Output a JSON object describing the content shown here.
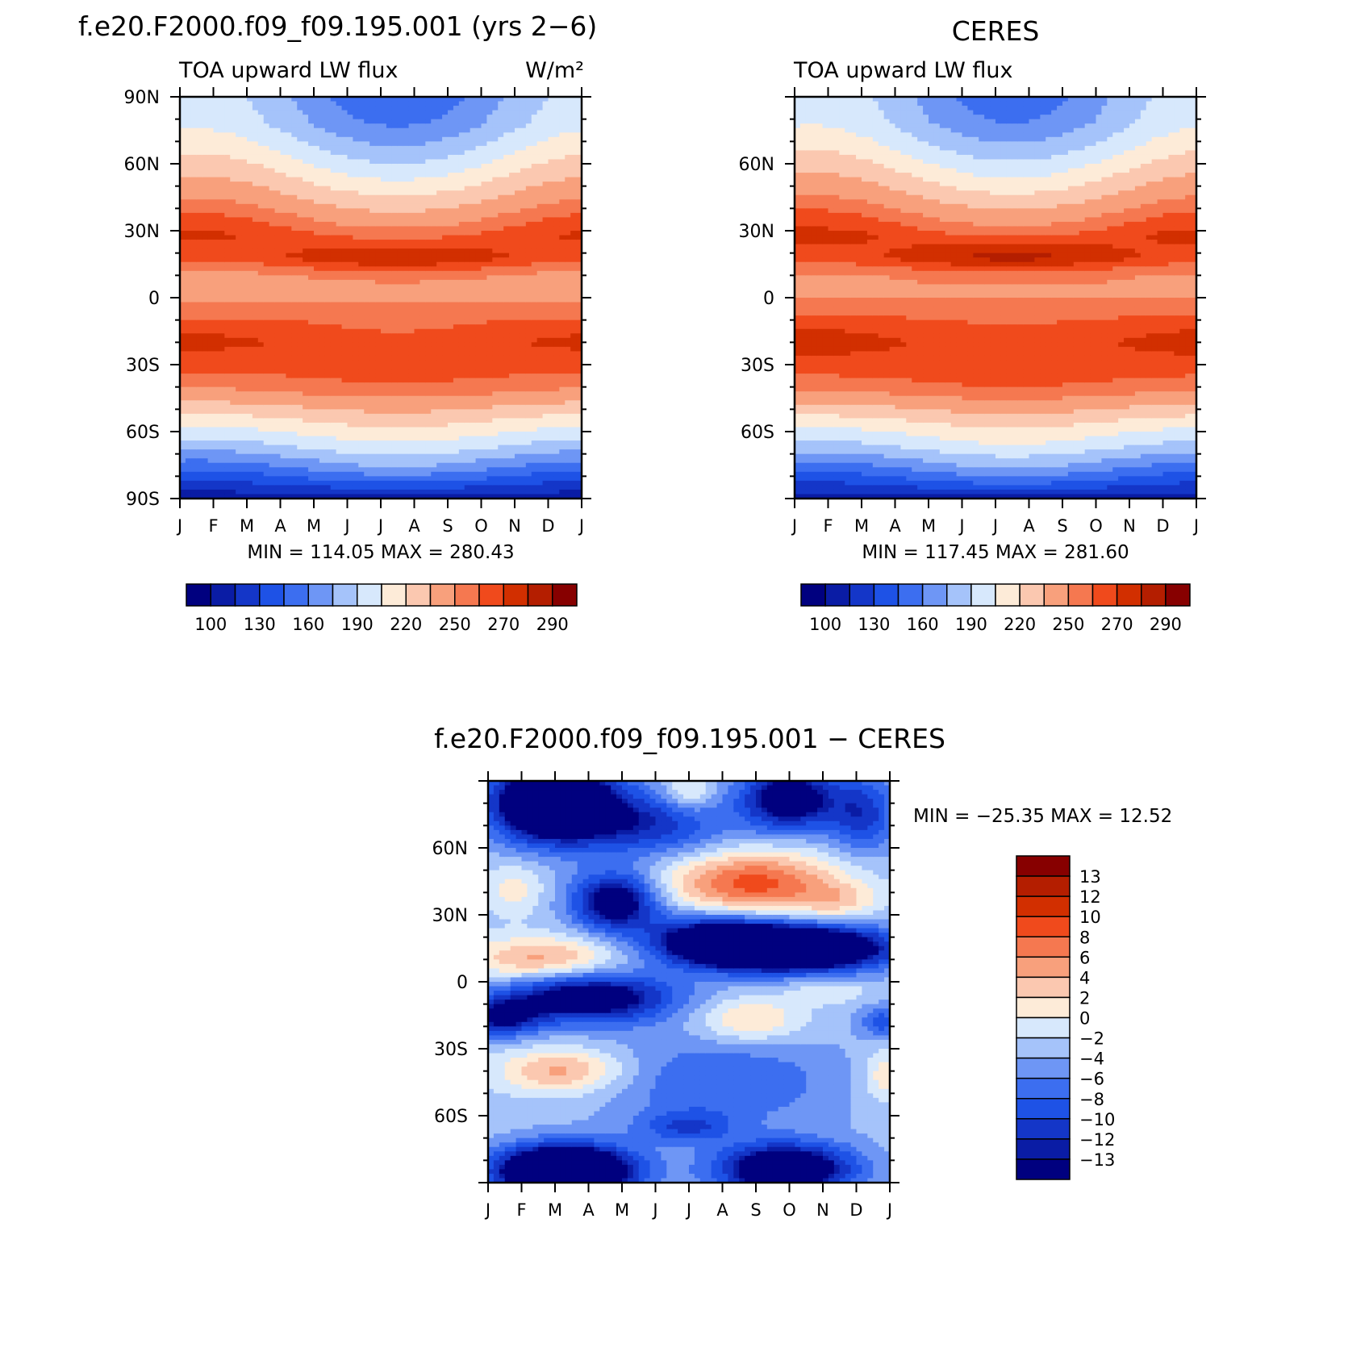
{
  "months": [
    "J",
    "F",
    "M",
    "A",
    "M",
    "J",
    "J",
    "A",
    "S",
    "O",
    "N",
    "D",
    "J"
  ],
  "chart_data": [
    {
      "type": "heatmap",
      "title": "f.e20.F2000.f09_f09.195.001 (yrs 2−6)",
      "subtitle_left": "TOA upward LW flux",
      "units": "W/m²",
      "xlabel": "",
      "ylabel": "",
      "xlim": [
        0,
        12
      ],
      "ylim": [
        -90,
        90
      ],
      "yticks": [
        {
          "v": 90,
          "label": "90N"
        },
        {
          "v": 60,
          "label": "60N"
        },
        {
          "v": 30,
          "label": "30N"
        },
        {
          "v": 0,
          "label": "0"
        },
        {
          "v": -30,
          "label": "30S"
        },
        {
          "v": -60,
          "label": "60S"
        },
        {
          "v": -90,
          "label": "90S"
        }
      ],
      "min_max": "MIN = 114.05 MAX = 280.43",
      "min": 114.05,
      "max": 280.43,
      "levels": [
        100,
        115,
        130,
        145,
        160,
        175,
        190,
        205,
        220,
        235,
        250,
        260,
        270,
        280,
        290
      ],
      "level_labels": [
        "100",
        "130",
        "160",
        "190",
        "220",
        "250",
        "270",
        "290"
      ],
      "colors": [
        "#00007f",
        "#0a1ca5",
        "#1436c8",
        "#1e52e6",
        "#3c6ef0",
        "#6e96f5",
        "#a5c3fa",
        "#d7e8fc",
        "#fdebd8",
        "#fbc8b0",
        "#f8a07c",
        "#f57850",
        "#f04a1c",
        "#d22f00",
        "#b41e00",
        "#870000"
      ],
      "zonal_profile": [
        {
          "lat": -90,
          "amp": 0,
          "v": 105
        },
        {
          "lat": -82,
          "amp": 10,
          "v": 140
        },
        {
          "lat": -75,
          "amp": 12,
          "v": 165
        },
        {
          "lat": -67,
          "amp": 10,
          "v": 190
        },
        {
          "lat": -58,
          "amp": 8,
          "v": 212
        },
        {
          "lat": -50,
          "amp": 6,
          "v": 232
        },
        {
          "lat": -42,
          "amp": 4,
          "v": 252
        },
        {
          "lat": -32,
          "amp": 2,
          "v": 264
        },
        {
          "lat": -20,
          "amp": -5,
          "v": 268
        },
        {
          "lat": -12,
          "amp": -4,
          "v": 262
        },
        {
          "lat": -5,
          "amp": 0,
          "v": 252
        },
        {
          "lat": 3,
          "amp": 0,
          "v": 245
        },
        {
          "lat": 10,
          "amp": 4,
          "v": 250
        },
        {
          "lat": 18,
          "amp": 10,
          "v": 272
        },
        {
          "lat": 28,
          "amp": -8,
          "v": 264
        },
        {
          "lat": 38,
          "amp": -12,
          "v": 248
        },
        {
          "lat": 48,
          "amp": -15,
          "v": 230
        },
        {
          "lat": 58,
          "amp": -18,
          "v": 212
        },
        {
          "lat": 68,
          "amp": -20,
          "v": 195
        },
        {
          "lat": 78,
          "amp": -22,
          "v": 180
        },
        {
          "lat": 90,
          "amp": -25,
          "v": 172
        }
      ]
    },
    {
      "type": "heatmap",
      "title": "CERES",
      "subtitle_left": "TOA upward LW flux",
      "units": "",
      "xlabel": "",
      "ylabel": "",
      "xlim": [
        0,
        12
      ],
      "ylim": [
        -90,
        90
      ],
      "yticks": [
        {
          "v": 60,
          "label": "60N"
        },
        {
          "v": 30,
          "label": "30N"
        },
        {
          "v": 0,
          "label": "0"
        },
        {
          "v": -30,
          "label": "30S"
        },
        {
          "v": -60,
          "label": "60S"
        }
      ],
      "min_max": "MIN = 117.45 MAX = 281.60",
      "min": 117.45,
      "max": 281.6,
      "levels": [
        100,
        115,
        130,
        145,
        160,
        175,
        190,
        205,
        220,
        235,
        250,
        260,
        270,
        280,
        290
      ],
      "level_labels": [
        "100",
        "130",
        "160",
        "190",
        "220",
        "250",
        "270",
        "290"
      ],
      "colors": [
        "#00007f",
        "#0a1ca5",
        "#1436c8",
        "#1e52e6",
        "#3c6ef0",
        "#6e96f5",
        "#a5c3fa",
        "#d7e8fc",
        "#fdebd8",
        "#fbc8b0",
        "#f8a07c",
        "#f57850",
        "#f04a1c",
        "#d22f00",
        "#b41e00",
        "#870000"
      ],
      "zonal_profile": [
        {
          "lat": -90,
          "amp": 0,
          "v": 108
        },
        {
          "lat": -82,
          "amp": 10,
          "v": 142
        },
        {
          "lat": -75,
          "amp": 12,
          "v": 167
        },
        {
          "lat": -67,
          "amp": 10,
          "v": 192
        },
        {
          "lat": -58,
          "amp": 8,
          "v": 213
        },
        {
          "lat": -50,
          "amp": 6,
          "v": 234
        },
        {
          "lat": -42,
          "amp": 4,
          "v": 254
        },
        {
          "lat": -32,
          "amp": 2,
          "v": 266
        },
        {
          "lat": -20,
          "amp": -5,
          "v": 270
        },
        {
          "lat": -12,
          "amp": -4,
          "v": 264
        },
        {
          "lat": -5,
          "amp": 0,
          "v": 254
        },
        {
          "lat": 3,
          "amp": 0,
          "v": 247
        },
        {
          "lat": 10,
          "amp": 4,
          "v": 252
        },
        {
          "lat": 18,
          "amp": 10,
          "v": 274
        },
        {
          "lat": 28,
          "amp": -8,
          "v": 266
        },
        {
          "lat": 38,
          "amp": -12,
          "v": 250
        },
        {
          "lat": 48,
          "amp": -15,
          "v": 232
        },
        {
          "lat": 58,
          "amp": -18,
          "v": 214
        },
        {
          "lat": 68,
          "amp": -20,
          "v": 197
        },
        {
          "lat": 78,
          "amp": -22,
          "v": 182
        },
        {
          "lat": 90,
          "amp": -25,
          "v": 176
        }
      ]
    },
    {
      "type": "heatmap",
      "title": "f.e20.F2000.f09_f09.195.001 − CERES",
      "xlabel": "",
      "ylabel": "",
      "xlim": [
        0,
        12
      ],
      "ylim": [
        -90,
        90
      ],
      "yticks": [
        {
          "v": 60,
          "label": "60N"
        },
        {
          "v": 30,
          "label": "30N"
        },
        {
          "v": 0,
          "label": "0"
        },
        {
          "v": -30,
          "label": "30S"
        },
        {
          "v": -60,
          "label": "60S"
        }
      ],
      "min_max": "MIN = −25.35 MAX =   12.52",
      "min": -25.35,
      "max": 12.52,
      "levels": [
        -13,
        -12,
        -10,
        -8,
        -6,
        -4,
        -2,
        0,
        2,
        4,
        6,
        8,
        10,
        12,
        13
      ],
      "level_labels": [
        "13",
        "12",
        "10",
        "8",
        "6",
        "4",
        "2",
        "0",
        "−2",
        "−4",
        "−6",
        "−8",
        "−10",
        "−12",
        "−13"
      ],
      "colors": [
        "#00007f",
        "#0a1ca5",
        "#1436c8",
        "#1e52e6",
        "#3c6ef0",
        "#6e96f5",
        "#a5c3fa",
        "#d7e8fc",
        "#fdebd8",
        "#fbc8b0",
        "#f8a07c",
        "#f57850",
        "#f04a1c",
        "#d22f00",
        "#b41e00",
        "#870000"
      ],
      "blobs": [
        {
          "m": 2.0,
          "lat": 80,
          "sm": 1.3,
          "slat": 12,
          "a": -22
        },
        {
          "m": 9.0,
          "lat": 82,
          "sm": 1.0,
          "slat": 10,
          "a": -14
        },
        {
          "m": 11.2,
          "lat": 75,
          "sm": 0.7,
          "slat": 12,
          "a": -8
        },
        {
          "m": 5.0,
          "lat": 70,
          "sm": 1.5,
          "slat": 10,
          "a": -8
        },
        {
          "m": 6.0,
          "lat": 85,
          "sm": 0.5,
          "slat": 6,
          "a": 5
        },
        {
          "m": 0.8,
          "lat": 42,
          "sm": 0.6,
          "slat": 8,
          "a": 4
        },
        {
          "m": 3.8,
          "lat": 36,
          "sm": 0.9,
          "slat": 9,
          "a": -14
        },
        {
          "m": 7.9,
          "lat": 44,
          "sm": 1.8,
          "slat": 10,
          "a": 12
        },
        {
          "m": 10.5,
          "lat": 36,
          "sm": 0.8,
          "slat": 6,
          "a": 4
        },
        {
          "m": 9.0,
          "lat": 15,
          "sm": 2.0,
          "slat": 7,
          "a": -24
        },
        {
          "m": 6.7,
          "lat": 20,
          "sm": 1.4,
          "slat": 8,
          "a": -10
        },
        {
          "m": 1.6,
          "lat": 10,
          "sm": 1.6,
          "slat": 7,
          "a": 8
        },
        {
          "m": 3.0,
          "lat": -7,
          "sm": 1.8,
          "slat": 8,
          "a": -14
        },
        {
          "m": 0.4,
          "lat": -16,
          "sm": 0.8,
          "slat": 6,
          "a": -10
        },
        {
          "m": 7.8,
          "lat": -17,
          "sm": 1.1,
          "slat": 7,
          "a": 6
        },
        {
          "m": 10.2,
          "lat": -4,
          "sm": 0.8,
          "slat": 4,
          "a": 3
        },
        {
          "m": 11.8,
          "lat": -18,
          "sm": 0.5,
          "slat": 5,
          "a": -6
        },
        {
          "m": 2.2,
          "lat": -40,
          "sm": 1.3,
          "slat": 7,
          "a": 8
        },
        {
          "m": 11.9,
          "lat": -42,
          "sm": 0.5,
          "slat": 8,
          "a": 5
        },
        {
          "m": 7.0,
          "lat": -45,
          "sm": 2.5,
          "slat": 15,
          "a": -5
        },
        {
          "m": 2.3,
          "lat": -85,
          "sm": 1.4,
          "slat": 8,
          "a": -25
        },
        {
          "m": 8.9,
          "lat": -84,
          "sm": 1.4,
          "slat": 8,
          "a": -17
        },
        {
          "m": 5.9,
          "lat": -65,
          "sm": 1.0,
          "slat": 5,
          "a": -6
        }
      ],
      "background": -3
    }
  ]
}
